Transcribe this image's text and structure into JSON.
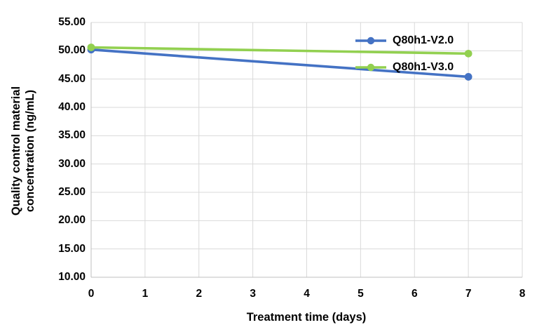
{
  "chart_data": {
    "type": "line",
    "xlabel": "Treatment time (days)",
    "ylabel": "Quality control material concentration (ng/mL)",
    "ylabel_lines": [
      "Quality control material",
      "concentration (ng/mL)"
    ],
    "x": [
      0,
      7
    ],
    "series": [
      {
        "name": "Q80h1-V2.0",
        "color": "#4472C4",
        "values": [
          50.2,
          45.4
        ]
      },
      {
        "name": "Q80h1-V3.0",
        "color": "#92D050",
        "values": [
          50.6,
          49.5
        ]
      }
    ],
    "xlim": [
      0,
      8
    ],
    "ylim": [
      10,
      55
    ],
    "x_ticks": [
      0,
      1,
      2,
      3,
      4,
      5,
      6,
      7,
      8
    ],
    "x_tick_labels": [
      "0",
      "1",
      "2",
      "3",
      "4",
      "5",
      "6",
      "7",
      "8"
    ],
    "y_ticks": [
      10,
      15,
      20,
      25,
      30,
      35,
      40,
      45,
      50,
      55
    ],
    "y_tick_labels": [
      "10.00",
      "15.00",
      "20.00",
      "25.00",
      "30.00",
      "35.00",
      "40.00",
      "45.00",
      "50.00",
      "55.00"
    ],
    "grid": true,
    "legend_position": "top-right-inside"
  },
  "colors": {
    "gridline": "#D9D9D9",
    "axis": "#BFBFBF",
    "text": "#000000",
    "background": "#FFFFFF"
  }
}
